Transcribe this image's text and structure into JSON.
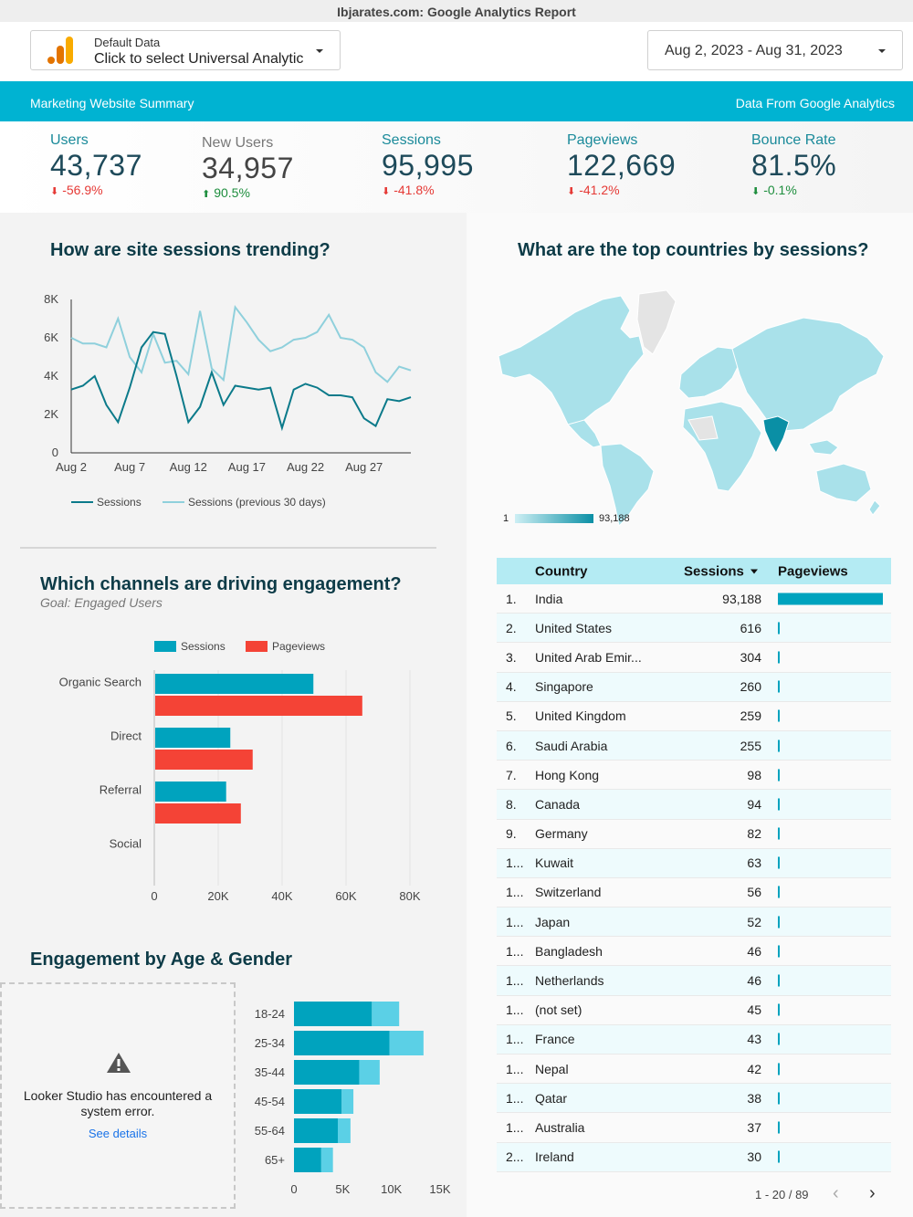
{
  "report_title": "Ibjarates.com: Google Analytics Report",
  "data_source": {
    "line1": "Default Data",
    "line2": "Click to select Universal Analytic"
  },
  "date_range": "Aug 2, 2023 - Aug 31, 2023",
  "banner": {
    "left": "Marketing Website Summary",
    "right": "Data From Google Analytics"
  },
  "kpis": [
    {
      "label": "Users",
      "value": "43,737",
      "delta": "-56.9%",
      "direction": "down"
    },
    {
      "label": "New Users",
      "value": "34,957",
      "delta": "90.5%",
      "direction": "up"
    },
    {
      "label": "Sessions",
      "value": "95,995",
      "delta": "-41.8%",
      "direction": "down"
    },
    {
      "label": "Pageviews",
      "value": "122,669",
      "delta": "-41.2%",
      "direction": "down"
    },
    {
      "label": "Bounce Rate",
      "value": "81.5%",
      "delta": "-0.1%",
      "direction": "down-good"
    }
  ],
  "colors": {
    "accent": "#00b3d2",
    "teal": "#0b7a8a",
    "light_teal": "#8fd0dc",
    "red": "#f44336",
    "bar_teal": "#00a3be"
  },
  "sessions_chart": {
    "title": "How are site sessions trending?",
    "legend": [
      "Sessions",
      "Sessions (previous 30 days)"
    ]
  },
  "map_chart": {
    "title": "What are the top countries by sessions?",
    "legend_min": "1",
    "legend_max": "93,188"
  },
  "channels_chart": {
    "title": "Which channels are driving engagement?",
    "subtitle": "Goal: Engaged Users",
    "legend": [
      "Sessions",
      "Pageviews"
    ]
  },
  "age_chart": {
    "title": "Engagement by Age & Gender"
  },
  "error": {
    "message": "Looker Studio has encountered a system error.",
    "link": "See details"
  },
  "table": {
    "headers": {
      "country": "Country",
      "sessions": "Sessions",
      "pageviews": "Pageviews",
      "sort_icon": "caret-down-icon"
    },
    "rows": [
      {
        "rank": "1.",
        "country": "India",
        "sessions": "93,188",
        "pv": 1.0
      },
      {
        "rank": "2.",
        "country": "United States",
        "sessions": "616",
        "pv": 0.007
      },
      {
        "rank": "3.",
        "country": "United Arab Emir...",
        "sessions": "304",
        "pv": 0.004
      },
      {
        "rank": "4.",
        "country": "Singapore",
        "sessions": "260",
        "pv": 0.003
      },
      {
        "rank": "5.",
        "country": "United Kingdom",
        "sessions": "259",
        "pv": 0.003
      },
      {
        "rank": "6.",
        "country": "Saudi Arabia",
        "sessions": "255",
        "pv": 0.003
      },
      {
        "rank": "7.",
        "country": "Hong Kong",
        "sessions": "98",
        "pv": 0.001
      },
      {
        "rank": "8.",
        "country": "Canada",
        "sessions": "94",
        "pv": 0.001
      },
      {
        "rank": "9.",
        "country": "Germany",
        "sessions": "82",
        "pv": 0.001
      },
      {
        "rank": "1...",
        "country": "Kuwait",
        "sessions": "63",
        "pv": 0.001
      },
      {
        "rank": "1...",
        "country": "Switzerland",
        "sessions": "56",
        "pv": 0.001
      },
      {
        "rank": "1...",
        "country": "Japan",
        "sessions": "52",
        "pv": 0.001
      },
      {
        "rank": "1...",
        "country": "Bangladesh",
        "sessions": "46",
        "pv": 0.001
      },
      {
        "rank": "1...",
        "country": "Netherlands",
        "sessions": "46",
        "pv": 0.001
      },
      {
        "rank": "1...",
        "country": "(not set)",
        "sessions": "45",
        "pv": 0.001
      },
      {
        "rank": "1...",
        "country": "France",
        "sessions": "43",
        "pv": 0.001
      },
      {
        "rank": "1...",
        "country": "Nepal",
        "sessions": "42",
        "pv": 0.001
      },
      {
        "rank": "1...",
        "country": "Qatar",
        "sessions": "38",
        "pv": 0.001
      },
      {
        "rank": "1...",
        "country": "Australia",
        "sessions": "37",
        "pv": 0.001
      },
      {
        "rank": "2...",
        "country": "Ireland",
        "sessions": "30",
        "pv": 0.001
      }
    ],
    "pagination": "1 - 20 / 89"
  },
  "chart_data": [
    {
      "type": "line",
      "title": "How are site sessions trending?",
      "x": [
        "Aug 2",
        "Aug 3",
        "Aug 4",
        "Aug 5",
        "Aug 6",
        "Aug 7",
        "Aug 8",
        "Aug 9",
        "Aug 10",
        "Aug 11",
        "Aug 12",
        "Aug 13",
        "Aug 14",
        "Aug 15",
        "Aug 16",
        "Aug 17",
        "Aug 18",
        "Aug 19",
        "Aug 20",
        "Aug 21",
        "Aug 22",
        "Aug 23",
        "Aug 24",
        "Aug 25",
        "Aug 26",
        "Aug 27",
        "Aug 28",
        "Aug 29",
        "Aug 30",
        "Aug 31"
      ],
      "x_tick_labels": [
        "Aug 2",
        "Aug 7",
        "Aug 12",
        "Aug 17",
        "Aug 22",
        "Aug 27"
      ],
      "y_tick_labels": [
        "0",
        "2K",
        "4K",
        "6K",
        "8K"
      ],
      "ylim": [
        0,
        8000
      ],
      "grid": false,
      "legend_position": "bottom",
      "series": [
        {
          "name": "Sessions",
          "color": "#0b7a8a",
          "values": [
            3300,
            3500,
            4000,
            2500,
            1600,
            3400,
            5500,
            6300,
            6200,
            4000,
            1600,
            2400,
            4200,
            2500,
            3500,
            3400,
            3300,
            3400,
            1300,
            3300,
            3600,
            3400,
            3000,
            3000,
            2900,
            1800,
            1400,
            2800,
            2700,
            2900
          ]
        },
        {
          "name": "Sessions (previous 30 days)",
          "color": "#8fd0dc",
          "values": [
            6000,
            5700,
            5700,
            5500,
            7000,
            5000,
            4200,
            6200,
            4700,
            4800,
            4100,
            7400,
            4400,
            3800,
            7600,
            6800,
            5900,
            5300,
            5500,
            5900,
            6000,
            6300,
            7200,
            6000,
            5900,
            5500,
            4200,
            3700,
            4500,
            4300
          ]
        }
      ]
    },
    {
      "type": "bar",
      "orientation": "horizontal",
      "title": "Which channels are driving engagement?",
      "subtitle": "Goal: Engaged Users",
      "categories": [
        "Organic Search",
        "Direct",
        "Referral",
        "Social"
      ],
      "x_tick_labels": [
        "0",
        "20K",
        "40K",
        "60K",
        "80K"
      ],
      "xlim": [
        0,
        80000
      ],
      "legend_position": "top",
      "series": [
        {
          "name": "Sessions",
          "color": "#00a3be",
          "values": [
            49500,
            23500,
            22200,
            0
          ]
        },
        {
          "name": "Pageviews",
          "color": "#f44336",
          "values": [
            64800,
            30500,
            26800,
            0
          ]
        }
      ]
    },
    {
      "type": "bar",
      "orientation": "horizontal",
      "stacked": true,
      "title": "Engagement by Age & Gender",
      "categories": [
        "18-24",
        "25-34",
        "35-44",
        "45-54",
        "55-64",
        "65+"
      ],
      "x_tick_labels": [
        "0",
        "5K",
        "10K",
        "15K"
      ],
      "xlim": [
        0,
        15000
      ],
      "series": [
        {
          "color": "#00a3be",
          "values": [
            8000,
            9800,
            6700,
            4900,
            4500,
            2800
          ]
        },
        {
          "color": "#5bd0e6",
          "values": [
            2800,
            3500,
            2100,
            1200,
            1300,
            1200
          ]
        }
      ]
    },
    {
      "type": "map",
      "title": "What are the top countries by sessions?",
      "highlight": "India",
      "scale_min": 1,
      "scale_max": 93188
    }
  ]
}
